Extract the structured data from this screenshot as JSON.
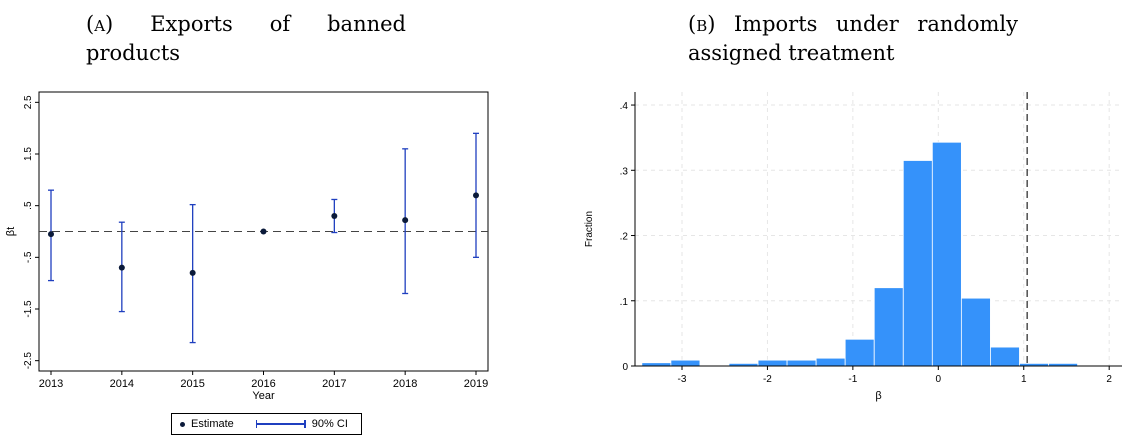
{
  "captions": {
    "a": {
      "tag": "(a)",
      "line1_words": [
        "Exports",
        "of",
        "banned"
      ],
      "line2": "products"
    },
    "b": {
      "tag": "(b)",
      "line1_words": [
        "Imports",
        "under",
        "randomly"
      ],
      "line2": "assigned treatment"
    }
  },
  "chart_data": [
    {
      "type": "scatter",
      "subtype": "coefficient plot with confidence intervals",
      "xlabel": "Year",
      "ylabel": "βt",
      "x": [
        2013,
        2014,
        2015,
        2016,
        2017,
        2018,
        2019
      ],
      "xticks": [
        "2013",
        "2014",
        "2015",
        "2016",
        "2017",
        "2018",
        "2019"
      ],
      "yticks": [
        -2.5,
        -1.5,
        -0.5,
        0.5,
        1.5,
        2.5
      ],
      "ytick_labels": [
        "-2.5",
        "-1.5",
        "-.5",
        ".5",
        "1.5",
        "2.5"
      ],
      "ylim": [
        -2.7,
        2.7
      ],
      "reference_line_y": 0,
      "series": [
        {
          "name": "Estimate",
          "values": [
            -0.05,
            -0.7,
            -0.8,
            0.0,
            0.3,
            0.22,
            0.7
          ]
        },
        {
          "name": "90% CI",
          "lower": [
            -0.95,
            -1.55,
            -2.15,
            0.0,
            -0.02,
            -1.2,
            -0.5
          ],
          "upper": [
            0.8,
            0.18,
            0.52,
            0.0,
            0.62,
            1.6,
            1.9
          ]
        }
      ],
      "legend": {
        "position": "bottom",
        "labels": [
          "Estimate",
          "90% CI"
        ]
      },
      "colors": {
        "marker": "#0b1a3a",
        "ci": "#1f3fbf"
      }
    },
    {
      "type": "bar",
      "subtype": "histogram",
      "xlabel": "β",
      "ylabel": "Fraction",
      "bin_width": 0.34,
      "bin_starts": [
        -3.47,
        -3.13,
        -2.79,
        -2.45,
        -2.11,
        -1.77,
        -1.43,
        -1.09,
        -0.75,
        -0.41,
        -0.07,
        0.27,
        0.61,
        0.95,
        1.29
      ],
      "values": [
        0.005,
        0.009,
        0.0,
        0.004,
        0.009,
        0.009,
        0.012,
        0.041,
        0.12,
        0.315,
        0.343,
        0.104,
        0.029,
        0.004,
        0.004
      ],
      "xticks": [
        -3,
        -2,
        -1,
        0,
        1,
        2
      ],
      "xtick_labels": [
        "-3",
        "-2",
        "-1",
        "0",
        "1",
        "2"
      ],
      "yticks": [
        0,
        0.1,
        0.2,
        0.3,
        0.4
      ],
      "ytick_labels": [
        "0",
        ".1",
        ".2",
        ".3",
        ".4"
      ],
      "xlim": [
        -3.55,
        2.15
      ],
      "ylim": [
        0,
        0.42
      ],
      "reference_line_x": 1.04,
      "colors": {
        "bar": "#3592fa"
      }
    }
  ]
}
